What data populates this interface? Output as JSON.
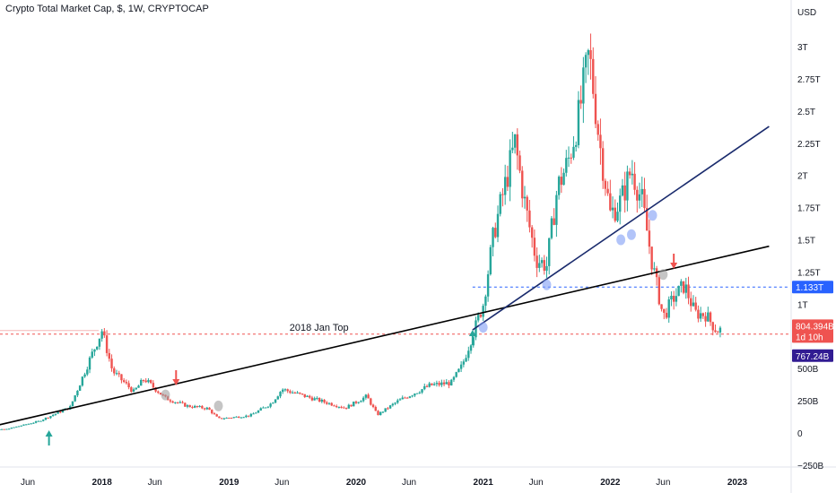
{
  "title": "Crypto Total Market Cap, $, 1W, CRYPTOCAP",
  "chart_data": {
    "type": "candlestick",
    "currency_label": "USD",
    "y_ticks": [
      {
        "v": -250000000000,
        "label": "−250B"
      },
      {
        "v": 0,
        "label": "0"
      },
      {
        "v": 250000000000,
        "label": "250B"
      },
      {
        "v": 500000000000,
        "label": "500B"
      },
      {
        "v": 1000000000000,
        "label": "1T"
      },
      {
        "v": 1250000000000,
        "label": "1.25T"
      },
      {
        "v": 1500000000000,
        "label": "1.5T"
      },
      {
        "v": 1750000000000,
        "label": "1.75T"
      },
      {
        "v": 2000000000000,
        "label": "2T"
      },
      {
        "v": 2250000000000,
        "label": "2.25T"
      },
      {
        "v": 2500000000000,
        "label": "2.5T"
      },
      {
        "v": 2750000000000,
        "label": "2.75T"
      },
      {
        "v": 3000000000000,
        "label": "3T"
      }
    ],
    "x_ticks": [
      {
        "date": "2017-06",
        "label": "Jun"
      },
      {
        "date": "2018-01",
        "label": "2018"
      },
      {
        "date": "2018-06",
        "label": "Jun"
      },
      {
        "date": "2019-01",
        "label": "2019"
      },
      {
        "date": "2019-06",
        "label": "Jun"
      },
      {
        "date": "2020-01",
        "label": "2020"
      },
      {
        "date": "2020-06",
        "label": "Jun"
      },
      {
        "date": "2021-01",
        "label": "2021"
      },
      {
        "date": "2021-06",
        "label": "Jun"
      },
      {
        "date": "2022-01",
        "label": "2022"
      },
      {
        "date": "2022-06",
        "label": "Jun"
      },
      {
        "date": "2023-01",
        "label": "2023"
      }
    ],
    "price_anchors": [
      [
        "2017-01",
        18000000000
      ],
      [
        "2017-04",
        30000000000
      ],
      [
        "2017-07",
        90000000000
      ],
      [
        "2017-10",
        200000000000
      ],
      [
        "2017-12",
        600000000000
      ],
      [
        "2018-01",
        795000000000
      ],
      [
        "2018-02",
        480000000000
      ],
      [
        "2018-04",
        320000000000
      ],
      [
        "2018-05",
        420000000000
      ],
      [
        "2018-07",
        270000000000
      ],
      [
        "2018-09",
        210000000000
      ],
      [
        "2018-11",
        190000000000
      ],
      [
        "2018-12",
        110000000000
      ],
      [
        "2019-03",
        135000000000
      ],
      [
        "2019-05",
        230000000000
      ],
      [
        "2019-06",
        340000000000
      ],
      [
        "2019-08",
        290000000000
      ],
      [
        "2019-10",
        240000000000
      ],
      [
        "2019-12",
        195000000000
      ],
      [
        "2020-02",
        285000000000
      ],
      [
        "2020-03",
        140000000000
      ],
      [
        "2020-05",
        250000000000
      ],
      [
        "2020-08",
        370000000000
      ],
      [
        "2020-10",
        390000000000
      ],
      [
        "2020-11",
        520000000000
      ],
      [
        "2020-12",
        760000000000
      ],
      [
        "2021-01",
        1000000000000
      ],
      [
        "2021-02",
        1550000000000
      ],
      [
        "2021-04",
        2250000000000
      ],
      [
        "2021-05",
        1750000000000
      ],
      [
        "2021-06",
        1350000000000
      ],
      [
        "2021-07",
        1300000000000
      ],
      [
        "2021-08",
        1900000000000
      ],
      [
        "2021-09",
        2100000000000
      ],
      [
        "2021-10",
        2450000000000
      ],
      [
        "2021-11",
        2950000000000
      ],
      [
        "2021-12",
        2250000000000
      ],
      [
        "2022-01",
        1700000000000
      ],
      [
        "2022-02",
        1800000000000
      ],
      [
        "2022-03",
        2050000000000
      ],
      [
        "2022-04",
        1800000000000
      ],
      [
        "2022-05",
        1300000000000
      ],
      [
        "2022-06",
        900000000000
      ],
      [
        "2022-07",
        1050000000000
      ],
      [
        "2022-08",
        1150000000000
      ],
      [
        "2022-09",
        930000000000
      ],
      [
        "2022-10",
        920000000000
      ],
      [
        "2022-11",
        800000000000
      ]
    ],
    "series_up_color": "#26a69a",
    "series_down_color": "#ef5350",
    "trendlines": [
      {
        "name": "long-term trendline",
        "color": "#000000",
        "from": [
          "2016-12",
          0
        ],
        "to": [
          "2023-04",
          1450000000000
        ]
      },
      {
        "name": "2021 support trendline",
        "color": "#1a2b6d",
        "from": [
          "2020-12",
          800000000000
        ],
        "to": [
          "2023-04",
          2380000000000
        ]
      }
    ],
    "horizontal_lines": [
      {
        "name": "2018 Jan Top line",
        "value": 767240000000,
        "style": "dashed",
        "color": "#ef5350",
        "label": "2018 Jan Top"
      },
      {
        "name": "1.133T line",
        "value": 1133000000000,
        "style": "dashed",
        "color": "#2962ff"
      }
    ],
    "price_tags": [
      {
        "name": "tag-1133",
        "label": "1.133T",
        "value": 1133000000000,
        "color": "#2962ff"
      },
      {
        "name": "tag-current",
        "label": "804.394B",
        "sub": "1d 10h",
        "value": 804394000000,
        "color": "#ef5350"
      },
      {
        "name": "tag-767",
        "label": "767.24B",
        "value": 767240000000,
        "color": "#311b92"
      }
    ],
    "arrows": [
      {
        "dir": "up",
        "date": "2017-08",
        "color": "#26a69a"
      },
      {
        "dir": "down",
        "date": "2018-08",
        "color": "#ef5350"
      },
      {
        "dir": "up",
        "date": "2020-12",
        "color": "#26a69a"
      },
      {
        "dir": "down",
        "date": "2022-07",
        "color": "#ef5350"
      }
    ],
    "markers": [
      {
        "date": "2018-12",
        "v": 210000000000,
        "color": "#9e9e9e"
      },
      {
        "date": "2018-07",
        "v": 295000000000,
        "color": "#9e9e9e"
      },
      {
        "date": "2021-01",
        "v": 820000000000,
        "color": "#7f9cf5"
      },
      {
        "date": "2021-07",
        "v": 1150000000000,
        "color": "#7f9cf5"
      },
      {
        "date": "2022-02",
        "v": 1500000000000,
        "color": "#7f9cf5"
      },
      {
        "date": "2022-03",
        "v": 1540000000000,
        "color": "#7f9cf5"
      },
      {
        "date": "2022-05",
        "v": 1690000000000,
        "color": "#7f9cf5"
      },
      {
        "date": "2022-06",
        "v": 1230000000000,
        "color": "#9e9e9e"
      }
    ]
  }
}
